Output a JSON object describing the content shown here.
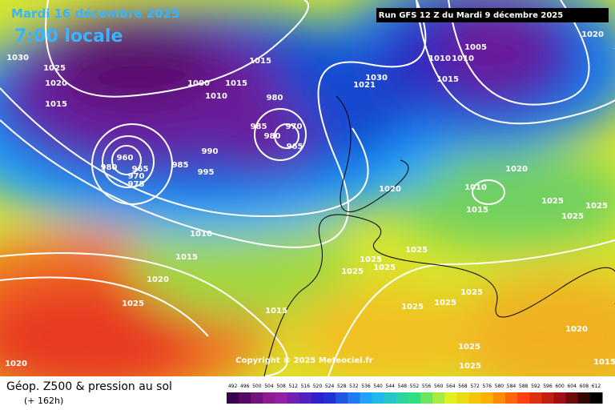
{
  "header": {
    "date": "Mardi 16 décembre 2025",
    "time": "7:00 locale",
    "run": "Run GFS 12 Z du Mardi 9 décembre 2025"
  },
  "copyright": "Copyright © 2025 Meteociel.fr",
  "footer": {
    "title": "Géop. Z500 & pression au sol",
    "lead": "(+ 162h)"
  },
  "legend": {
    "labels": [
      492,
      496,
      500,
      504,
      508,
      512,
      516,
      520,
      524,
      528,
      532,
      536,
      540,
      544,
      548,
      552,
      556,
      560,
      564,
      568,
      572,
      576,
      580,
      584,
      588,
      592,
      596,
      600,
      604,
      608,
      612
    ]
  },
  "isobars": [
    1030,
    1025,
    1020,
    1015,
    1000,
    1010,
    1015,
    1015,
    980,
    985,
    980,
    970,
    965,
    990,
    985,
    995,
    980,
    960,
    965,
    970,
    975,
    1021,
    1030,
    1010,
    1005,
    1010,
    1015,
    1020,
    1020,
    1010,
    1015,
    1020,
    1025,
    1025,
    1025,
    1010,
    1015,
    1020,
    1025,
    1025,
    1025,
    1025,
    1025,
    1015,
    1025,
    1025,
    1025,
    1020,
    1025,
    1025,
    1020,
    1015
  ]
}
